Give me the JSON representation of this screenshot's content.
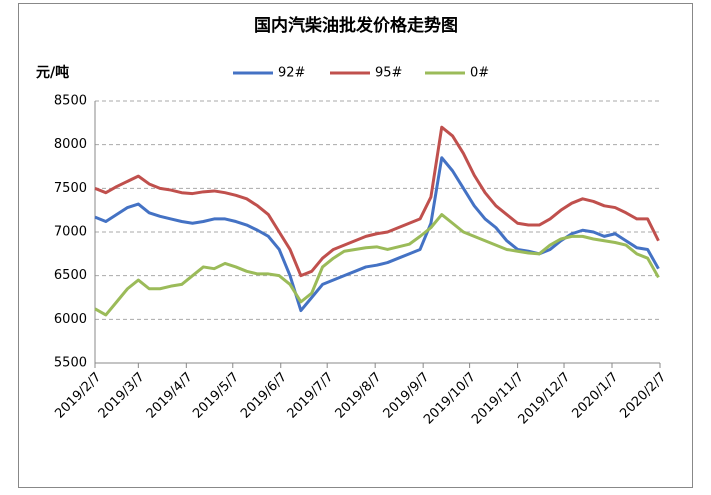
{
  "chart_data": {
    "type": "line",
    "title": "国内汽柴油批发价格走势图",
    "y_label": "元/吨",
    "x": [
      "2019/2/7",
      "2019/2/14",
      "2019/2/21",
      "2019/2/28",
      "2019/3/7",
      "2019/3/14",
      "2019/3/21",
      "2019/3/28",
      "2019/4/4",
      "2019/4/11",
      "2019/4/18",
      "2019/4/25",
      "2019/5/2",
      "2019/5/9",
      "2019/5/16",
      "2019/5/23",
      "2019/5/30",
      "2019/6/6",
      "2019/6/13",
      "2019/6/20",
      "2019/6/27",
      "2019/7/4",
      "2019/7/11",
      "2019/7/18",
      "2019/7/25",
      "2019/8/1",
      "2019/8/8",
      "2019/8/15",
      "2019/8/22",
      "2019/8/29",
      "2019/9/5",
      "2019/9/12",
      "2019/9/19",
      "2019/9/26",
      "2019/10/3",
      "2019/10/10",
      "2019/10/17",
      "2019/10/24",
      "2019/10/31",
      "2019/11/7",
      "2019/11/14",
      "2019/11/21",
      "2019/11/28",
      "2019/12/5",
      "2019/12/12",
      "2019/12/19",
      "2019/12/26",
      "2020/1/2",
      "2020/1/9",
      "2020/1/16",
      "2020/1/23",
      "2020/1/30",
      "2020/2/6"
    ],
    "series": [
      {
        "name": "92#",
        "color": "#4472c4",
        "values": [
          7170,
          7120,
          7200,
          7280,
          7320,
          7220,
          7180,
          7150,
          7120,
          7100,
          7120,
          7150,
          7150,
          7120,
          7080,
          7020,
          6950,
          6800,
          6500,
          6100,
          6250,
          6400,
          6450,
          6500,
          6550,
          6600,
          6620,
          6650,
          6700,
          6750,
          6800,
          7100,
          7850,
          7700,
          7500,
          7300,
          7150,
          7050,
          6900,
          6800,
          6780,
          6750,
          6800,
          6900,
          6980,
          7020,
          7000,
          6950,
          6980,
          6900,
          6820,
          6800,
          6580
        ]
      },
      {
        "name": "95#",
        "color": "#c0504d",
        "values": [
          7500,
          7450,
          7520,
          7580,
          7640,
          7550,
          7500,
          7480,
          7450,
          7440,
          7460,
          7470,
          7450,
          7420,
          7380,
          7300,
          7200,
          7000,
          6800,
          6500,
          6550,
          6700,
          6800,
          6850,
          6900,
          6950,
          6980,
          7000,
          7050,
          7100,
          7150,
          7400,
          8200,
          8100,
          7900,
          7650,
          7450,
          7300,
          7200,
          7100,
          7080,
          7080,
          7150,
          7250,
          7330,
          7380,
          7350,
          7300,
          7280,
          7220,
          7150,
          7150,
          6900
        ]
      },
      {
        "name": "0#",
        "color": "#9bbb59",
        "values": [
          6120,
          6050,
          6200,
          6350,
          6450,
          6350,
          6350,
          6380,
          6400,
          6500,
          6600,
          6580,
          6640,
          6600,
          6550,
          6520,
          6520,
          6500,
          6400,
          6200,
          6300,
          6600,
          6700,
          6780,
          6800,
          6820,
          6830,
          6800,
          6830,
          6860,
          6950,
          7050,
          7200,
          7100,
          7000,
          6950,
          6900,
          6850,
          6800,
          6780,
          6760,
          6750,
          6850,
          6920,
          6950,
          6950,
          6920,
          6900,
          6880,
          6850,
          6750,
          6700,
          6480
        ]
      }
    ],
    "xticks": [
      "2019/2/7",
      "2019/3/7",
      "2019/4/7",
      "2019/5/7",
      "2019/6/7",
      "2019/7/7",
      "2019/8/7",
      "2019/9/7",
      "2019/10/7",
      "2019/11/7",
      "2019/12/7",
      "2020/1/7",
      "2020/2/7"
    ],
    "ylim": [
      5500,
      8500
    ],
    "yticks": [
      5500,
      6000,
      6500,
      7000,
      7500,
      8000,
      8500
    ],
    "grid": true,
    "legend": "top"
  }
}
